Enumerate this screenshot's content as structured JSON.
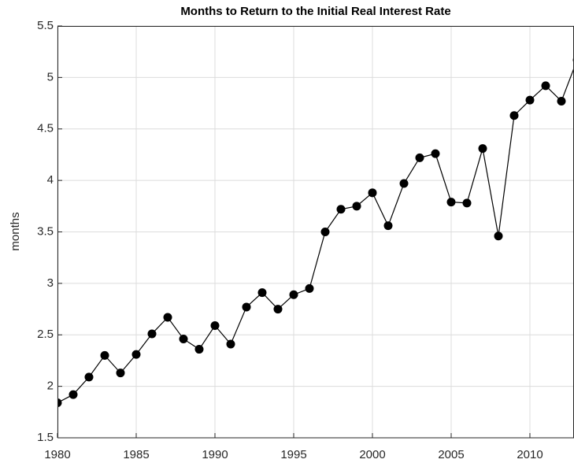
{
  "chart_data": {
    "type": "line",
    "title": "Months to Return to the Initial Real Interest Rate",
    "ylabel": "months",
    "x": [
      1980,
      1981,
      1982,
      1983,
      1984,
      1985,
      1986,
      1987,
      1988,
      1989,
      1990,
      1991,
      1992,
      1993,
      1994,
      1995,
      1996,
      1997,
      1998,
      1999,
      2000,
      2001,
      2002,
      2003,
      2004,
      2005,
      2006,
      2007,
      2008,
      2009,
      2010,
      2011,
      2012,
      2013
    ],
    "series": [
      {
        "name": "months",
        "color": "#000000",
        "values": [
          1.84,
          1.92,
          2.09,
          2.3,
          2.13,
          2.31,
          2.51,
          2.67,
          2.46,
          2.36,
          2.59,
          2.41,
          2.77,
          2.91,
          2.75,
          2.89,
          2.95,
          3.5,
          3.72,
          3.75,
          3.88,
          3.56,
          3.97,
          4.22,
          4.26,
          3.79,
          3.78,
          4.31,
          3.46,
          4.63,
          4.78,
          4.92,
          4.77,
          5.17
        ]
      }
    ],
    "xlim": [
      1980,
      2012.8
    ],
    "xticks": [
      1980,
      1985,
      1990,
      1995,
      2000,
      2005,
      2010
    ],
    "ylim": [
      1.5,
      5.5
    ],
    "yticks": [
      1.5,
      2,
      2.5,
      3,
      3.5,
      4,
      4.5,
      5,
      5.5
    ],
    "grid": true
  }
}
